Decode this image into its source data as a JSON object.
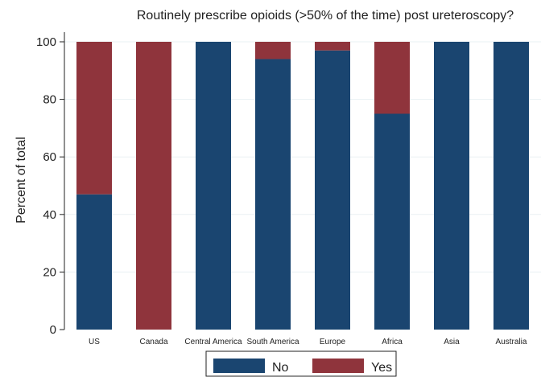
{
  "chart_data": {
    "type": "bar",
    "stacked": true,
    "title": "Routinely prescribe opioids (>50% of the time) post ureteroscopy?",
    "xlabel": "",
    "ylabel": "Percent of total",
    "ylim": [
      0,
      100
    ],
    "yticks": [
      "0",
      "20",
      "40",
      "60",
      "80",
      "100"
    ],
    "grid": true,
    "legend_position": "bottom",
    "categories": [
      "US",
      "Canada",
      "Central America",
      "South America",
      "Europe",
      "Africa",
      "Asia",
      "Australia"
    ],
    "series": [
      {
        "name": "No",
        "color": "#1a4570",
        "values": [
          47,
          0,
          100,
          94,
          97,
          75,
          100,
          100
        ]
      },
      {
        "name": "Yes",
        "color": "#8f343c",
        "values": [
          53,
          100,
          0,
          6,
          3,
          25,
          0,
          0
        ]
      }
    ]
  }
}
